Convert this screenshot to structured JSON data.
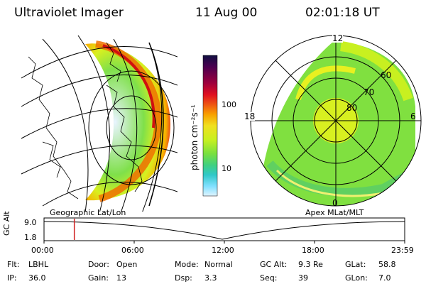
{
  "header": {
    "title": "Ultraviolet Imager",
    "date": "11 Aug 00",
    "time": "02:01:18 UT"
  },
  "colorbar": {
    "unit_label": "photon cm⁻²s⁻¹",
    "ticks": [
      "100",
      "10"
    ],
    "colors": [
      "#101040",
      "#4a0050",
      "#a0003c",
      "#e01020",
      "#f06010",
      "#f8a000",
      "#f0e020",
      "#c8f020",
      "#78e040",
      "#40d080",
      "#30c8c8",
      "#80e0ff",
      "#e0f4ff"
    ]
  },
  "polar": {
    "mlt_labels": {
      "top": "12",
      "left": "18",
      "right": "6",
      "bottom": "0"
    },
    "lat_labels": [
      "60",
      "70",
      "80"
    ]
  },
  "map_labels": {
    "left": "Geographic Lat/Lon",
    "right": "Apex MLat/MLT"
  },
  "timeline": {
    "axis_title": "GC Alt",
    "y_ticks": [
      "9.0",
      "1.8"
    ],
    "x_ticks": [
      "00:00",
      "06:00",
      "12:00",
      "18:00",
      "23:59"
    ],
    "current_time_fraction": 0.084
  },
  "footer": [
    [
      {
        "k": "Flt:",
        "v": "LBHL"
      },
      {
        "k": "Door:",
        "v": "Open"
      },
      {
        "k": "Mode:",
        "v": "Normal"
      },
      {
        "k": "GC Alt:",
        "v": "9.3 Re"
      },
      {
        "k": "GLat:",
        "v": "58.8"
      }
    ],
    [
      {
        "k": "IP:",
        "v": "36.0"
      },
      {
        "k": "Gain:",
        "v": "13"
      },
      {
        "k": "Dsp:",
        "v": "3.3"
      },
      {
        "k": "Seq:",
        "v": "39"
      },
      {
        "k": "GLon:",
        "v": "7.0"
      }
    ]
  ]
}
